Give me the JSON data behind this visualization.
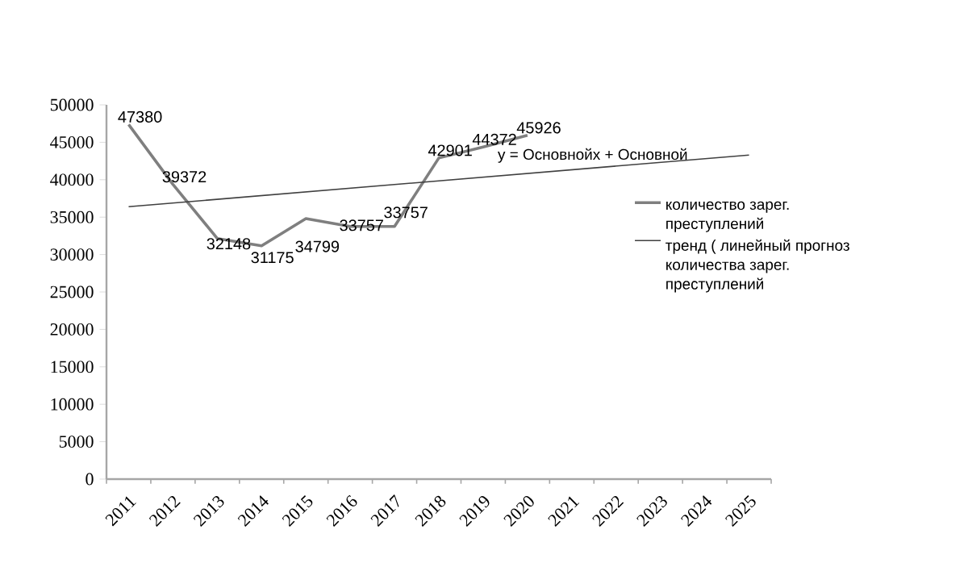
{
  "chart_data": {
    "type": "line",
    "categories": [
      "2011",
      "2012",
      "2013",
      "2014",
      "2015",
      "2016",
      "2017",
      "2018",
      "2019",
      "2020",
      "2021",
      "2022",
      "2023",
      "2024",
      "2025"
    ],
    "series": [
      {
        "name": "количество зарег. преступлений",
        "color": "#7f7f7f",
        "values": [
          47380,
          39372,
          32148,
          31175,
          34799,
          33757,
          33757,
          42901,
          44372,
          45926,
          null,
          null,
          null,
          null,
          null
        ],
        "value_labels": [
          "47380",
          "39372",
          "32148",
          "31175",
          "34799",
          "33757",
          "33757",
          "42901",
          "44372",
          "45926",
          null,
          null,
          null,
          null,
          null
        ]
      },
      {
        "name": "тренд ( линейный прогноз количества зарег. преступлений",
        "color": "#404040",
        "type": "line",
        "values": [
          36400,
          null,
          null,
          null,
          null,
          null,
          null,
          null,
          null,
          null,
          null,
          null,
          null,
          null,
          43300
        ]
      }
    ],
    "ylim": [
      0,
      50000
    ],
    "yticks": [
      0,
      5000,
      10000,
      15000,
      20000,
      25000,
      30000,
      35000,
      40000,
      45000,
      50000
    ],
    "grid": false,
    "legend": "right",
    "marker": "none",
    "line_style": "solid",
    "annotations": [
      "y = Основнойх + Основной"
    ]
  }
}
